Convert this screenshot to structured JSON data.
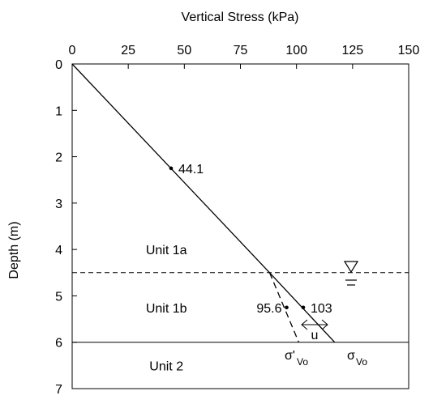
{
  "chart_data": {
    "type": "line",
    "xlabel": "Vertical Stress (kPa)",
    "ylabel": "Depth (m)",
    "xlim": [
      0,
      150
    ],
    "ylim": [
      0,
      7
    ],
    "x_axis_position": "top",
    "y_axis_inverted": true,
    "grid": false,
    "xticks": [
      "0",
      "25",
      "50",
      "75",
      "100",
      "125",
      "150"
    ],
    "yticks": [
      "0",
      "1",
      "2",
      "3",
      "4",
      "5",
      "6",
      "7"
    ],
    "series": [
      {
        "style": "solid",
        "x": [
          0,
          88,
          117
        ],
        "y": [
          0,
          4.5,
          6
        ]
      },
      {
        "style": "dashed",
        "x": [
          88,
          101
        ],
        "y": [
          4.5,
          6
        ]
      }
    ],
    "points": [
      {
        "x": 44.1,
        "y": 2.25,
        "label": "44.1"
      },
      {
        "x": 95.6,
        "y": 5.25,
        "label": "95.6"
      },
      {
        "x": 103,
        "y": 5.25,
        "label": "103"
      }
    ],
    "water_table_depth": 4.5,
    "layer_boundary_depth": 6,
    "units": [
      {
        "label": "Unit 1a",
        "x": 42,
        "y": 4.0
      },
      {
        "label": "Unit 1b",
        "x": 42,
        "y": 5.25
      },
      {
        "label": "Unit 2",
        "x": 42,
        "y": 6.5
      }
    ],
    "annotations": {
      "u_label": "u",
      "sigma_eff_label": "σ'",
      "sigma_total_label": "σ",
      "sub_label": "Vo",
      "water_symbol": "∇"
    }
  }
}
